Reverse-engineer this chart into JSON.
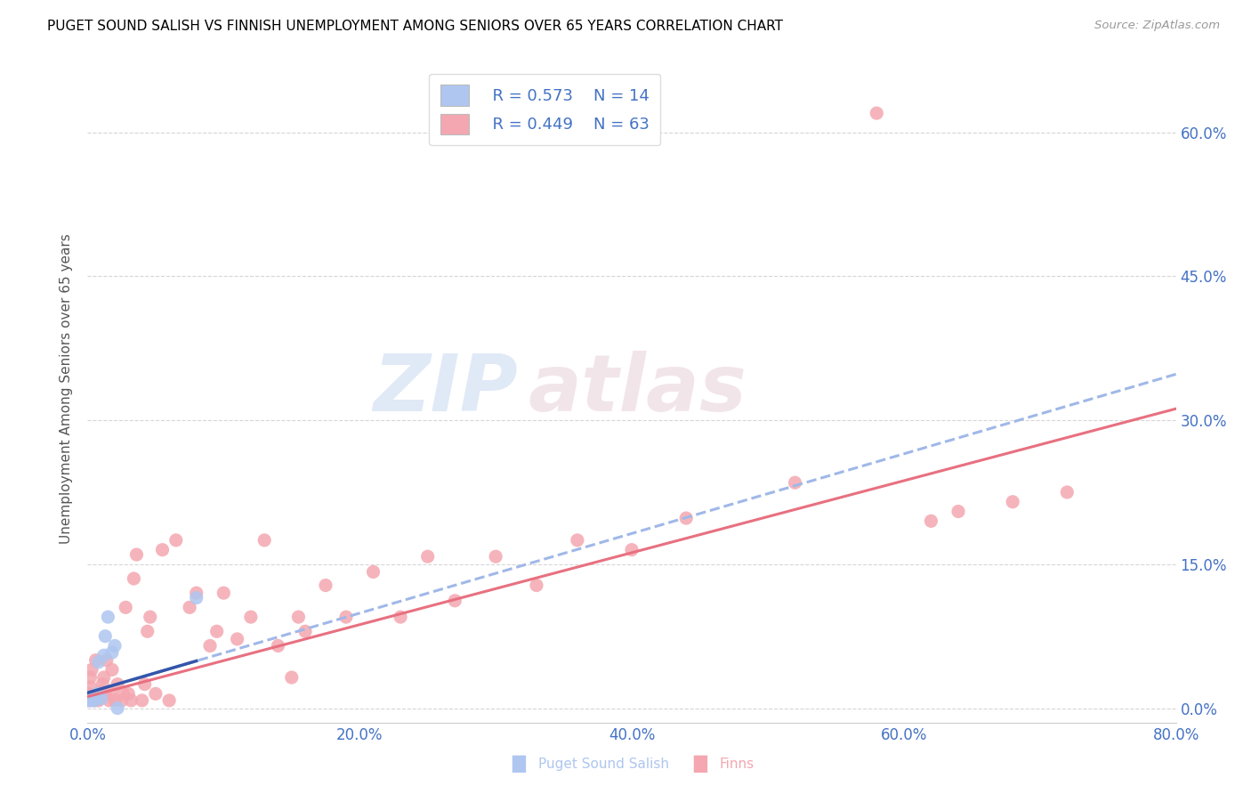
{
  "title": "PUGET SOUND SALISH VS FINNISH UNEMPLOYMENT AMONG SENIORS OVER 65 YEARS CORRELATION CHART",
  "source": "Source: ZipAtlas.com",
  "ylabel": "Unemployment Among Seniors over 65 years",
  "xlabel_ticks": [
    "0.0%",
    "20.0%",
    "40.0%",
    "60.0%",
    "80.0%"
  ],
  "xlabel_vals": [
    0.0,
    0.2,
    0.4,
    0.6,
    0.8
  ],
  "ylabel_ticks_right": [
    "0.0%",
    "15.0%",
    "30.0%",
    "45.0%",
    "60.0%"
  ],
  "ylabel_vals": [
    0.0,
    0.15,
    0.3,
    0.45,
    0.6
  ],
  "xmin": 0.0,
  "xmax": 0.8,
  "ymin": -0.015,
  "ymax": 0.68,
  "legend_r1": "R = 0.573",
  "legend_n1": "N = 14",
  "legend_r2": "R = 0.449",
  "legend_n2": "N = 63",
  "color_salish": "#aec6f0",
  "color_finns": "#f4a7b0",
  "color_line_salish": "#a0b8e8",
  "color_line_finns": "#e87080",
  "color_right_axis": "#4472c4",
  "color_blue_solid": "#3355aa",
  "watermark_zip": "ZIP",
  "watermark_atlas": "atlas",
  "salish_x": [
    0.0,
    0.001,
    0.003,
    0.005,
    0.007,
    0.008,
    0.01,
    0.012,
    0.013,
    0.015,
    0.018,
    0.02,
    0.022,
    0.08
  ],
  "salish_y": [
    0.008,
    0.01,
    0.008,
    0.008,
    0.015,
    0.048,
    0.01,
    0.055,
    0.075,
    0.095,
    0.058,
    0.065,
    0.0,
    0.115
  ],
  "finns_x": [
    0.001,
    0.001,
    0.002,
    0.002,
    0.003,
    0.005,
    0.006,
    0.008,
    0.009,
    0.01,
    0.011,
    0.012,
    0.013,
    0.014,
    0.016,
    0.017,
    0.018,
    0.02,
    0.022,
    0.025,
    0.026,
    0.028,
    0.03,
    0.032,
    0.034,
    0.036,
    0.04,
    0.042,
    0.044,
    0.046,
    0.05,
    0.055,
    0.06,
    0.065,
    0.075,
    0.08,
    0.09,
    0.095,
    0.1,
    0.11,
    0.12,
    0.13,
    0.14,
    0.15,
    0.155,
    0.16,
    0.175,
    0.19,
    0.21,
    0.23,
    0.25,
    0.27,
    0.3,
    0.33,
    0.36,
    0.4,
    0.44,
    0.52,
    0.58,
    0.62,
    0.64,
    0.68,
    0.72
  ],
  "finns_y": [
    0.008,
    0.015,
    0.022,
    0.032,
    0.04,
    0.008,
    0.05,
    0.008,
    0.015,
    0.018,
    0.025,
    0.032,
    0.015,
    0.05,
    0.008,
    0.015,
    0.04,
    0.008,
    0.025,
    0.008,
    0.015,
    0.105,
    0.015,
    0.008,
    0.135,
    0.16,
    0.008,
    0.025,
    0.08,
    0.095,
    0.015,
    0.165,
    0.008,
    0.175,
    0.105,
    0.12,
    0.065,
    0.08,
    0.12,
    0.072,
    0.095,
    0.175,
    0.065,
    0.032,
    0.095,
    0.08,
    0.128,
    0.095,
    0.142,
    0.095,
    0.158,
    0.112,
    0.158,
    0.128,
    0.175,
    0.165,
    0.198,
    0.235,
    0.62,
    0.195,
    0.205,
    0.215,
    0.225
  ],
  "regression_finns_slope": 0.375,
  "regression_finns_intercept": 0.012,
  "regression_salish_slope": 0.415,
  "regression_salish_intercept": 0.016
}
